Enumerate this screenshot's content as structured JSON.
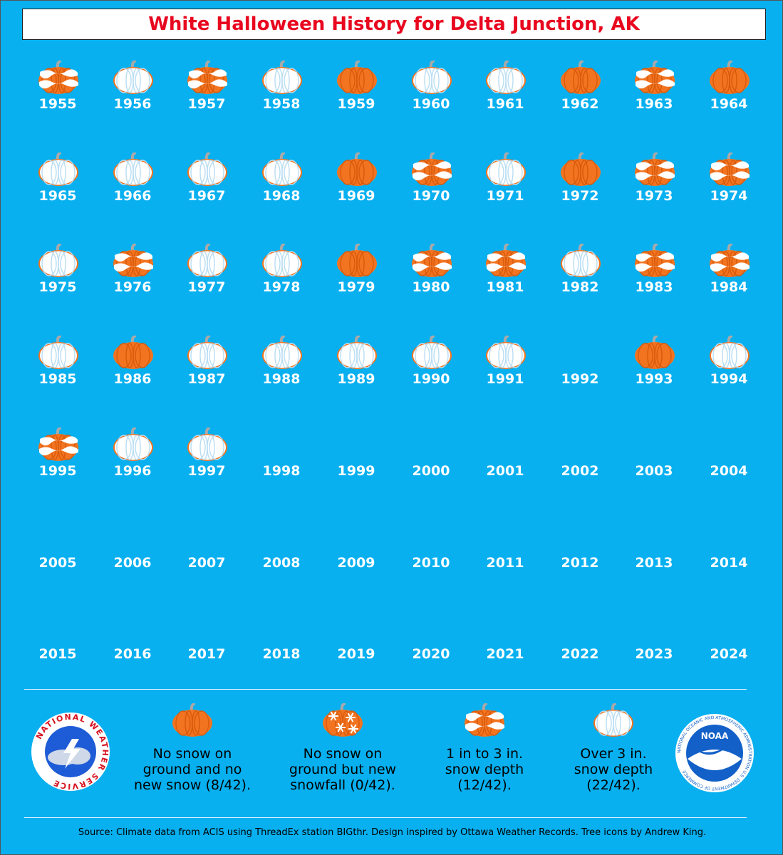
{
  "chart_data": {
    "type": "table",
    "title": "White Halloween History for Delta Junction, AK",
    "categories_legend": {
      "none": "No snow on ground and no new snow (8/42).",
      "newsnow": "No snow on ground but new snowfall (0/42).",
      "shallow": "1 in to 3 in. snow depth (12/42).",
      "deep": "Over 3 in. snow depth (22/42)."
    },
    "years": [
      {
        "year": "1955",
        "category": "shallow"
      },
      {
        "year": "1956",
        "category": "deep"
      },
      {
        "year": "1957",
        "category": "shallow"
      },
      {
        "year": "1958",
        "category": "deep"
      },
      {
        "year": "1959",
        "category": "none"
      },
      {
        "year": "1960",
        "category": "deep"
      },
      {
        "year": "1961",
        "category": "deep"
      },
      {
        "year": "1962",
        "category": "none"
      },
      {
        "year": "1963",
        "category": "shallow"
      },
      {
        "year": "1964",
        "category": "none"
      },
      {
        "year": "1965",
        "category": "deep"
      },
      {
        "year": "1966",
        "category": "deep"
      },
      {
        "year": "1967",
        "category": "deep"
      },
      {
        "year": "1968",
        "category": "deep"
      },
      {
        "year": "1969",
        "category": "none"
      },
      {
        "year": "1970",
        "category": "shallow"
      },
      {
        "year": "1971",
        "category": "deep"
      },
      {
        "year": "1972",
        "category": "none"
      },
      {
        "year": "1973",
        "category": "shallow"
      },
      {
        "year": "1974",
        "category": "shallow"
      },
      {
        "year": "1975",
        "category": "deep"
      },
      {
        "year": "1976",
        "category": "shallow"
      },
      {
        "year": "1977",
        "category": "deep"
      },
      {
        "year": "1978",
        "category": "deep"
      },
      {
        "year": "1979",
        "category": "none"
      },
      {
        "year": "1980",
        "category": "shallow"
      },
      {
        "year": "1981",
        "category": "shallow"
      },
      {
        "year": "1982",
        "category": "deep"
      },
      {
        "year": "1983",
        "category": "shallow"
      },
      {
        "year": "1984",
        "category": "shallow"
      },
      {
        "year": "1985",
        "category": "deep"
      },
      {
        "year": "1986",
        "category": "none"
      },
      {
        "year": "1987",
        "category": "deep"
      },
      {
        "year": "1988",
        "category": "deep"
      },
      {
        "year": "1989",
        "category": "deep"
      },
      {
        "year": "1990",
        "category": "deep"
      },
      {
        "year": "1991",
        "category": "deep"
      },
      {
        "year": "1992",
        "category": "missing"
      },
      {
        "year": "1993",
        "category": "none"
      },
      {
        "year": "1994",
        "category": "deep"
      },
      {
        "year": "1995",
        "category": "shallow"
      },
      {
        "year": "1996",
        "category": "deep"
      },
      {
        "year": "1997",
        "category": "deep"
      },
      {
        "year": "1998",
        "category": "missing"
      },
      {
        "year": "1999",
        "category": "missing"
      },
      {
        "year": "2000",
        "category": "missing"
      },
      {
        "year": "2001",
        "category": "missing"
      },
      {
        "year": "2002",
        "category": "missing"
      },
      {
        "year": "2003",
        "category": "missing"
      },
      {
        "year": "2004",
        "category": "missing"
      },
      {
        "year": "2005",
        "category": "missing"
      },
      {
        "year": "2006",
        "category": "missing"
      },
      {
        "year": "2007",
        "category": "missing"
      },
      {
        "year": "2008",
        "category": "missing"
      },
      {
        "year": "2009",
        "category": "missing"
      },
      {
        "year": "2010",
        "category": "missing"
      },
      {
        "year": "2011",
        "category": "missing"
      },
      {
        "year": "2012",
        "category": "missing"
      },
      {
        "year": "2013",
        "category": "missing"
      },
      {
        "year": "2014",
        "category": "missing"
      },
      {
        "year": "2015",
        "category": "missing"
      },
      {
        "year": "2016",
        "category": "missing"
      },
      {
        "year": "2017",
        "category": "missing"
      },
      {
        "year": "2018",
        "category": "missing"
      },
      {
        "year": "2019",
        "category": "missing"
      },
      {
        "year": "2020",
        "category": "missing"
      },
      {
        "year": "2021",
        "category": "missing"
      },
      {
        "year": "2022",
        "category": "missing"
      },
      {
        "year": "2023",
        "category": "missing"
      },
      {
        "year": "2024",
        "category": "missing"
      }
    ]
  },
  "legend": {
    "none_label": "No snow on ground and no new snow (8/42).",
    "newsnow_label": "No snow on ground but new snowfall (0/42).",
    "shallow_label": "1 in to 3 in. snow depth (12/42).",
    "deep_label": "Over 3 in. snow depth (22/42)."
  },
  "logos": {
    "nws_text": "NATIONAL WEATHER SERVICE",
    "noaa_text": "NOAA",
    "noaa_ring_text": "NATIONAL OCEANIC AND ATMOSPHERIC ADMINISTRATION U.S. DEPARTMENT OF COMMERCE"
  },
  "source": "Source: Climate data from ACIS using ThreadEx station BIGthr. Design inspired by Ottawa Weather Records. Tree icons by Andrew King.",
  "colors": {
    "background": "#08b0f0",
    "pumpkin": "#f27420",
    "title": "#e8071f",
    "snow": "#ffffff"
  }
}
